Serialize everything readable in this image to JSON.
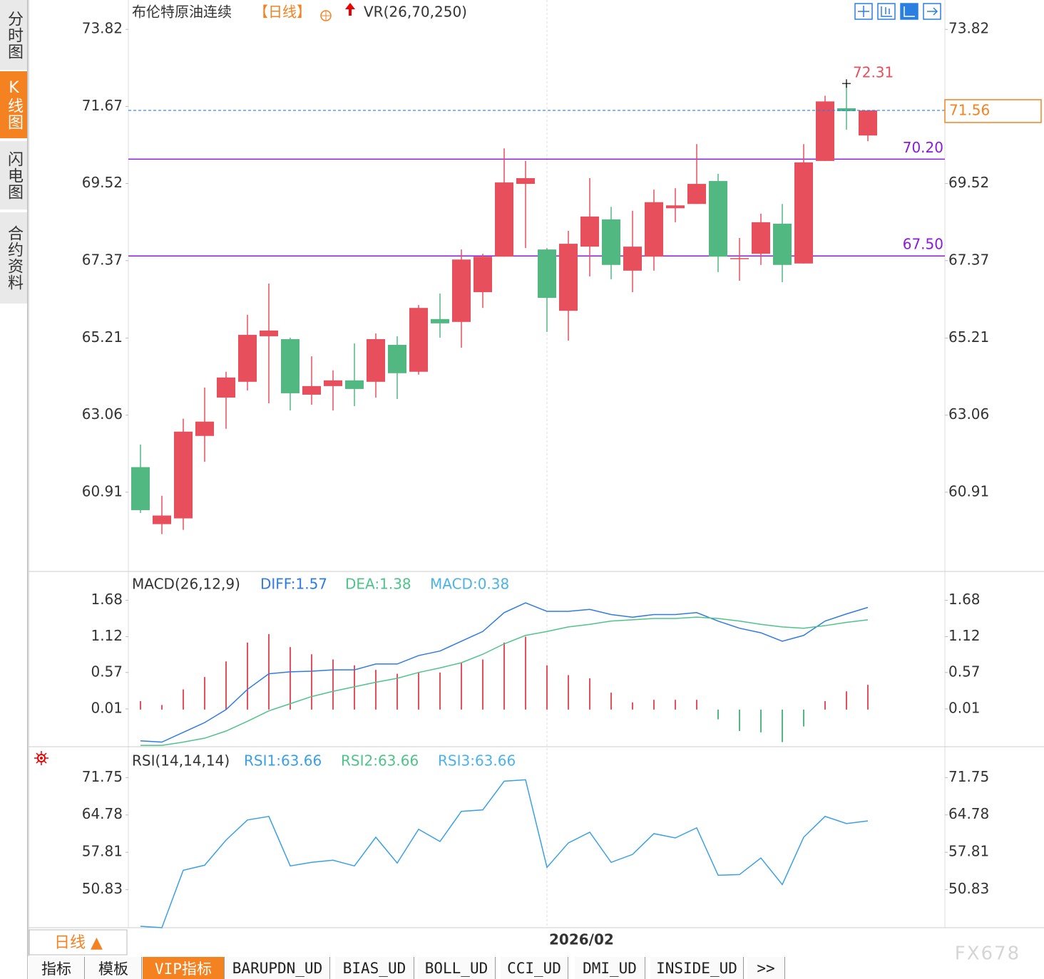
{
  "sidebar": {
    "tabs": [
      "分时图",
      "K线图",
      "闪电图",
      "合约资料"
    ]
  },
  "chart_data": [
    {
      "type": "candlestick",
      "title": "布伦特原油连续",
      "period_label": "【日线】",
      "indicator": "VR(26,70,250)",
      "categories": [
        null,
        null,
        null,
        null,
        null,
        null,
        null,
        null,
        null,
        null,
        null,
        null,
        null,
        null,
        null,
        null,
        null,
        null,
        null,
        "2026/02",
        null,
        null,
        null,
        null,
        null,
        null,
        null,
        null,
        null,
        null,
        null,
        null,
        null,
        null,
        null
      ],
      "open": [
        61.61,
        60.02,
        60.18,
        62.48,
        63.55,
        63.99,
        65.26,
        65.18,
        63.63,
        63.87,
        64.03,
        63.99,
        65.02,
        64.27,
        65.74,
        65.66,
        66.49,
        67.48,
        69.51,
        67.68,
        65.97,
        67.76,
        68.52,
        67.09,
        67.48,
        68.83,
        68.95,
        69.59,
        67.44,
        67.56,
        68.4,
        67.29,
        70.15,
        71.62,
        70.86
      ],
      "high": [
        62.24,
        60.81,
        62.96,
        63.83,
        64.27,
        65.86,
        66.73,
        65.22,
        64.7,
        64.31,
        65.06,
        65.34,
        65.26,
        66.13,
        66.45,
        67.68,
        67.56,
        70.5,
        70.15,
        67.72,
        68.2,
        69.67,
        68.87,
        68.76,
        69.35,
        69.39,
        70.62,
        69.79,
        68.0,
        68.68,
        68.95,
        70.62,
        71.97,
        72.31,
        71.56
      ],
      "low": [
        60.33,
        59.74,
        59.86,
        61.76,
        62.68,
        63.75,
        63.39,
        63.19,
        63.35,
        63.19,
        63.31,
        63.55,
        63.51,
        64.19,
        65.22,
        64.94,
        66.05,
        67.48,
        67.72,
        65.38,
        65.14,
        66.93,
        66.85,
        66.49,
        67.09,
        68.44,
        68.95,
        67.05,
        66.81,
        67.25,
        66.77,
        67.29,
        70.15,
        71.02,
        70.7
      ],
      "close": [
        60.41,
        60.26,
        62.6,
        62.88,
        64.11,
        65.3,
        65.42,
        63.67,
        63.87,
        64.03,
        63.79,
        65.18,
        64.23,
        66.05,
        65.62,
        67.4,
        67.48,
        69.55,
        69.67,
        66.33,
        67.84,
        68.6,
        67.25,
        67.76,
        69.0,
        68.91,
        69.51,
        67.48,
        67.44,
        68.44,
        67.25,
        70.11,
        71.81,
        71.54,
        71.56
      ],
      "up_color": "#e84f5d",
      "down_color": "#52b882",
      "ylim": [
        58.74,
        74.48
      ],
      "yticks": [
        73.82,
        71.67,
        69.52,
        67.37,
        65.21,
        63.06,
        60.91
      ],
      "hlines": [
        {
          "value": 70.2,
          "label": "70.20",
          "color": "#8a1bd8"
        },
        {
          "value": 67.5,
          "label": "67.50",
          "color": "#8a1bd8"
        }
      ],
      "high_label": {
        "value": 72.31,
        "label": "72.31",
        "color": "#e84f5d"
      },
      "last_price": {
        "value": 71.56,
        "label": "71.56",
        "color": "#f58220",
        "line_color": "#2a7fe0"
      }
    },
    {
      "type": "macd",
      "title": "MACD(26,12,9)",
      "series": [
        {
          "name": "DIFF:1.57",
          "color": "#2f7be6",
          "values": [
            -0.48,
            -0.5,
            -0.35,
            -0.2,
            0.0,
            0.31,
            0.55,
            0.58,
            0.59,
            0.61,
            0.61,
            0.7,
            0.7,
            0.83,
            0.9,
            1.05,
            1.2,
            1.49,
            1.64,
            1.51,
            1.51,
            1.54,
            1.46,
            1.42,
            1.46,
            1.46,
            1.49,
            1.36,
            1.25,
            1.18,
            1.05,
            1.14,
            1.36,
            1.47,
            1.57
          ]
        },
        {
          "name": "DEA:1.38",
          "color": "#4fc38a",
          "values": [
            -0.55,
            -0.55,
            -0.5,
            -0.44,
            -0.33,
            -0.18,
            -0.02,
            0.09,
            0.2,
            0.28,
            0.35,
            0.42,
            0.48,
            0.57,
            0.64,
            0.72,
            0.85,
            1.01,
            1.14,
            1.2,
            1.27,
            1.31,
            1.36,
            1.38,
            1.4,
            1.4,
            1.42,
            1.4,
            1.36,
            1.31,
            1.27,
            1.25,
            1.29,
            1.34,
            1.38
          ]
        }
      ],
      "histogram": {
        "name": "MACD:0.38",
        "color": "#4bb3e8",
        "up_color": "#e84f5d",
        "down_color": "#52b882",
        "values": [
          0.13,
          0.07,
          0.31,
          0.5,
          0.74,
          1.03,
          1.16,
          0.96,
          0.85,
          0.77,
          0.68,
          0.61,
          0.55,
          0.57,
          0.57,
          0.72,
          0.77,
          1.03,
          1.12,
          0.68,
          0.53,
          0.48,
          0.26,
          0.11,
          0.15,
          0.15,
          0.15,
          -0.15,
          -0.33,
          -0.35,
          -0.5,
          -0.26,
          0.13,
          0.28,
          0.38
        ]
      },
      "ylim": [
        -0.56,
        2.09
      ],
      "yticks": [
        1.68,
        1.12,
        0.57,
        0.01
      ]
    },
    {
      "type": "rsi",
      "title": "RSI(14,14,14)",
      "series": [
        {
          "name": "RSI1:63.66",
          "color": "#3aa0e6",
          "values": [
            44.0,
            43.73,
            54.46,
            55.4,
            60.09,
            63.84,
            64.51,
            55.26,
            55.93,
            56.33,
            55.26,
            60.62,
            55.8,
            62.1,
            59.82,
            65.45,
            65.72,
            71.08,
            71.35,
            54.99,
            59.55,
            61.56,
            55.93,
            57.41,
            61.29,
            60.49,
            62.37,
            53.52,
            53.65,
            56.74,
            51.78,
            60.62,
            64.51,
            63.17,
            63.66
          ]
        }
      ],
      "extra_labels": [
        {
          "text": "RSI2:63.66",
          "color": "#4fc38a"
        },
        {
          "text": "RSI3:63.66",
          "color": "#4bb3e8"
        }
      ],
      "ylim": [
        43.73,
        77.25
      ],
      "yticks": [
        71.75,
        64.78,
        57.81,
        50.83
      ]
    }
  ],
  "footer": {
    "period_button": "日线 ▲",
    "tabs": [
      "指标",
      "模板",
      "VIP指标",
      "BARUPDN_UD",
      "BIAS_UD",
      "BOLL_UD",
      "CCI_UD",
      "DMI_UD",
      "INSIDE_UD",
      ">>"
    ],
    "active_tab": 2,
    "watermark": "FX678"
  }
}
